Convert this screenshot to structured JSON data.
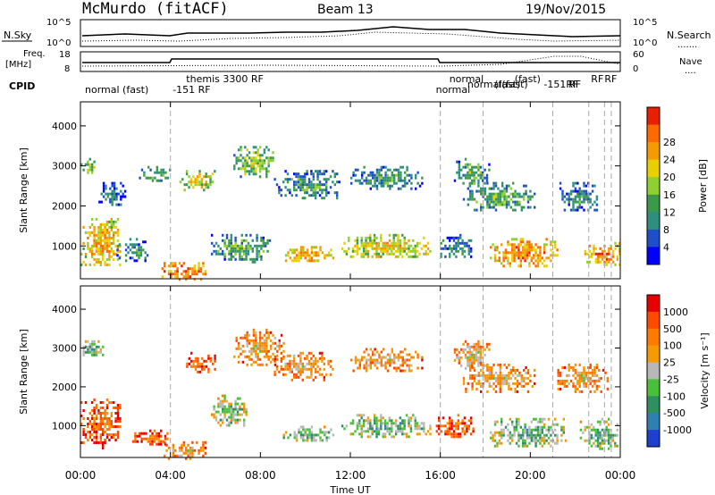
{
  "header": {
    "station": "McMurdo (fitACF)",
    "beam": "Beam 13",
    "date": "19/Nov/2015"
  },
  "strips": {
    "nsky_label": "N.Sky",
    "nsearch_label": "N.Search",
    "nsearch_dots": ".......",
    "noise_ticks_left": [
      "10^5",
      "10^0"
    ],
    "noise_ticks_right": [
      "10^5",
      "10^0"
    ],
    "freq_label": "Freq.",
    "freq_unit": "[MHz]",
    "freq_ticks": [
      "18",
      "8"
    ],
    "nave_label": "Nave",
    "nave_dots": "....",
    "nave_ticks": [
      "60",
      "0"
    ],
    "cpid_label": "CPID",
    "cpid_entries": [
      {
        "text": "normal (fast)",
        "row": "low",
        "t": 0.2
      },
      {
        "text": "-151 RF",
        "row": "low",
        "t": 4.1
      },
      {
        "text": "themis 3300 RF",
        "row": "high",
        "t": 4.7
      },
      {
        "text": "normal",
        "row": "low",
        "t": 15.8
      },
      {
        "text": "normal",
        "row": "high",
        "t": 16.4
      },
      {
        "text": "normal(fast)",
        "row": "mid",
        "t": 17.2
      },
      {
        "text": "(fast)",
        "row": "mid",
        "t": 18.4
      },
      {
        "text": "(fast)",
        "row": "high",
        "t": 19.3
      },
      {
        "text": "-151RF",
        "row": "mid",
        "t": 20.6
      },
      {
        "text": "RF",
        "row": "mid",
        "t": 21.7
      },
      {
        "text": "RF",
        "row": "high",
        "t": 22.7
      },
      {
        "text": "RF",
        "row": "high",
        "t": 23.3
      }
    ]
  },
  "chart_data": [
    {
      "type": "heatmap",
      "title": "",
      "xlabel": "",
      "ylabel": "Slant Range [km]",
      "xlim_hours": [
        0,
        24
      ],
      "ylim_km": [
        180,
        4600
      ],
      "yticks": [
        1000,
        2000,
        3000,
        4000
      ],
      "xticks_hours": [
        0,
        4,
        8,
        12,
        16,
        20,
        24
      ],
      "colorbar": {
        "label": "Power [dB]",
        "ticks": [
          "4",
          "8",
          "12",
          "16",
          "20",
          "24",
          "28"
        ],
        "colors": [
          "#0000ff",
          "#1f4fc8",
          "#2f8f7f",
          "#3a9a4a",
          "#8fcf2f",
          "#e8d000",
          "#f59a00",
          "#ff6a00",
          "#e82000"
        ]
      },
      "bands": [
        {
          "t0": 0.0,
          "t1": 1.8,
          "r0": 500,
          "r1": 1700,
          "level": 0.75
        },
        {
          "t0": 0.0,
          "t1": 0.8,
          "r0": 2800,
          "r1": 3200,
          "level": 0.55
        },
        {
          "t0": 1.6,
          "t1": 3.0,
          "r0": 600,
          "r1": 1200,
          "level": 0.35
        },
        {
          "t0": 0.8,
          "t1": 2.0,
          "r0": 2000,
          "r1": 2600,
          "level": 0.3
        },
        {
          "t0": 3.6,
          "t1": 5.6,
          "r0": 180,
          "r1": 600,
          "level": 0.9
        },
        {
          "t0": 4.4,
          "t1": 6.0,
          "r0": 2400,
          "r1": 2900,
          "level": 0.65
        },
        {
          "t0": 2.6,
          "t1": 4.0,
          "r0": 2600,
          "r1": 3000,
          "level": 0.45
        },
        {
          "t0": 5.8,
          "t1": 8.4,
          "r0": 600,
          "r1": 1300,
          "level": 0.45
        },
        {
          "t0": 6.8,
          "t1": 8.6,
          "r0": 2700,
          "r1": 3500,
          "level": 0.55
        },
        {
          "t0": 8.6,
          "t1": 11.6,
          "r0": 2200,
          "r1": 2900,
          "level": 0.4
        },
        {
          "t0": 9.0,
          "t1": 11.2,
          "r0": 600,
          "r1": 1000,
          "level": 0.8
        },
        {
          "t0": 11.6,
          "t1": 15.6,
          "r0": 700,
          "r1": 1300,
          "level": 0.7
        },
        {
          "t0": 12.0,
          "t1": 15.2,
          "r0": 2400,
          "r1": 3000,
          "level": 0.4
        },
        {
          "t0": 15.8,
          "t1": 17.4,
          "r0": 700,
          "r1": 1300,
          "level": 0.35
        },
        {
          "t0": 17.0,
          "t1": 20.2,
          "r0": 1900,
          "r1": 2600,
          "level": 0.45
        },
        {
          "t0": 18.2,
          "t1": 21.2,
          "r0": 500,
          "r1": 1200,
          "level": 0.85
        },
        {
          "t0": 21.2,
          "t1": 23.0,
          "r0": 1900,
          "r1": 2600,
          "level": 0.35
        },
        {
          "t0": 22.4,
          "t1": 24.0,
          "r0": 500,
          "r1": 1100,
          "level": 0.85
        },
        {
          "t0": 16.6,
          "t1": 18.2,
          "r0": 2500,
          "r1": 3200,
          "level": 0.45
        }
      ]
    },
    {
      "type": "heatmap",
      "title": "",
      "xlabel": "Time UT",
      "ylabel": "Slant Range [km]",
      "xlim_hours": [
        0,
        24
      ],
      "ylim_km": [
        180,
        4600
      ],
      "yticks": [
        1000,
        2000,
        3000,
        4000
      ],
      "xticks_hours": [
        0,
        4,
        8,
        12,
        16,
        20,
        24
      ],
      "xtick_labels": [
        "00:00",
        "04:00",
        "08:00",
        "12:00",
        "16:00",
        "20:00",
        "00:00"
      ],
      "colorbar": {
        "label": "Velocity [m s⁻¹]",
        "ticks": [
          "1000",
          "500",
          "100",
          "25",
          "-25",
          "-100",
          "-500",
          "-1000"
        ],
        "colors": [
          "#1f3fd0",
          "#2f7fb0",
          "#2f8f5f",
          "#4abf3a",
          "#b8b8b8",
          "#f59a00",
          "#ff7a00",
          "#ff4a00",
          "#e80000"
        ]
      },
      "bands": [
        {
          "t0": 0.0,
          "t1": 1.8,
          "r0": 400,
          "r1": 1700,
          "level": 0.3
        },
        {
          "t0": 0.0,
          "t1": 1.0,
          "r0": 2800,
          "r1": 3200,
          "level": 0.7
        },
        {
          "t0": 2.2,
          "t1": 4.0,
          "r0": 500,
          "r1": 900,
          "level": 0.3
        },
        {
          "t0": 3.6,
          "t1": 5.6,
          "r0": 180,
          "r1": 600,
          "level": 0.45
        },
        {
          "t0": 4.6,
          "t1": 6.0,
          "r0": 2400,
          "r1": 2900,
          "level": 0.3
        },
        {
          "t0": 5.8,
          "t1": 7.4,
          "r0": 1000,
          "r1": 1800,
          "level": 0.65
        },
        {
          "t0": 6.8,
          "t1": 9.0,
          "r0": 2600,
          "r1": 3500,
          "level": 0.45
        },
        {
          "t0": 8.6,
          "t1": 11.2,
          "r0": 2200,
          "r1": 2900,
          "level": 0.45
        },
        {
          "t0": 9.0,
          "t1": 11.2,
          "r0": 600,
          "r1": 1000,
          "level": 0.7
        },
        {
          "t0": 11.6,
          "t1": 15.6,
          "r0": 700,
          "r1": 1300,
          "level": 0.7
        },
        {
          "t0": 12.0,
          "t1": 15.2,
          "r0": 2400,
          "r1": 3000,
          "level": 0.45
        },
        {
          "t0": 15.8,
          "t1": 17.6,
          "r0": 700,
          "r1": 1300,
          "level": 0.3
        },
        {
          "t0": 17.0,
          "t1": 20.2,
          "r0": 1900,
          "r1": 2600,
          "level": 0.45
        },
        {
          "t0": 18.2,
          "t1": 21.6,
          "r0": 500,
          "r1": 1200,
          "level": 0.7
        },
        {
          "t0": 21.2,
          "t1": 23.4,
          "r0": 1900,
          "r1": 2600,
          "level": 0.45
        },
        {
          "t0": 22.2,
          "t1": 24.0,
          "r0": 400,
          "r1": 1200,
          "level": 0.7
        },
        {
          "t0": 16.6,
          "t1": 18.2,
          "r0": 2500,
          "r1": 3200,
          "level": 0.5
        }
      ]
    }
  ],
  "dashed_times_hours": [
    4.0,
    16.0,
    17.9,
    21.0,
    22.6,
    23.3,
    23.6
  ]
}
